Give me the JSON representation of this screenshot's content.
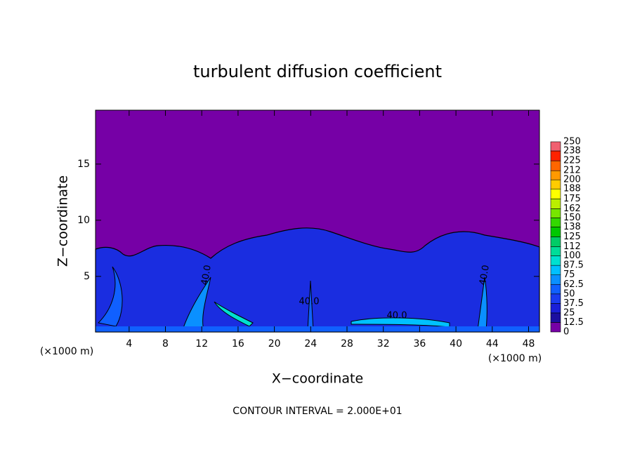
{
  "chart_data": {
    "type": "contour",
    "title": "turbulent diffusion coefficient",
    "xlabel": "X−coordinate",
    "ylabel": "Z−coordinate",
    "x_unit_left": "(×1000 m)",
    "x_unit_right": "(×1000 m)",
    "footnote": "CONTOUR INTERVAL = 2.000E+01",
    "xlim": [
      0.3,
      49.2
    ],
    "xticks": [
      4,
      8,
      12,
      16,
      20,
      24,
      28,
      32,
      36,
      40,
      44,
      48
    ],
    "ylim": [
      0.05,
      19.8
    ],
    "yticks": [
      5,
      10,
      15
    ],
    "contour_labels": [
      "40.0",
      "40.0",
      "40.0",
      "40.0"
    ],
    "levels": [
      0,
      12.5,
      25,
      37.5,
      50,
      62.5,
      75,
      87.5,
      100,
      112,
      125,
      138,
      150,
      162,
      175,
      188,
      200,
      212,
      225,
      238,
      250
    ],
    "colors": [
      "#7600a6",
      "#1c0fa0",
      "#1a1fd8",
      "#1a3cf0",
      "#1060ff",
      "#0a90ff",
      "#00c0ff",
      "#00e0d0",
      "#00dd99",
      "#00cc66",
      "#00c800",
      "#33d800",
      "#77e600",
      "#bbee00",
      "#ffff00",
      "#ffcc00",
      "#ff9900",
      "#ff6600",
      "#ff2200",
      "#f06070"
    ]
  }
}
